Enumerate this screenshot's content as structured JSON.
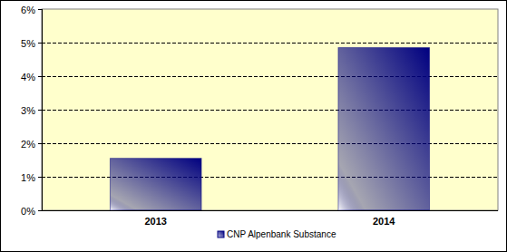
{
  "chart_data": {
    "type": "bar",
    "categories": [
      "2013",
      "2014"
    ],
    "series": [
      {
        "name": "CNP Alpenbank Substance",
        "color": "#000080",
        "values": [
          1.55,
          4.85
        ]
      }
    ],
    "ylim": [
      0,
      6
    ],
    "yticks": [
      {
        "value": 0,
        "label": "0%"
      },
      {
        "value": 1,
        "label": "1%"
      },
      {
        "value": 2,
        "label": "2%"
      },
      {
        "value": 3,
        "label": "3%"
      },
      {
        "value": 4,
        "label": "4%"
      },
      {
        "value": 5,
        "label": "5%"
      },
      {
        "value": 6,
        "label": "6%"
      }
    ],
    "grid": true,
    "legend": "bottom"
  }
}
